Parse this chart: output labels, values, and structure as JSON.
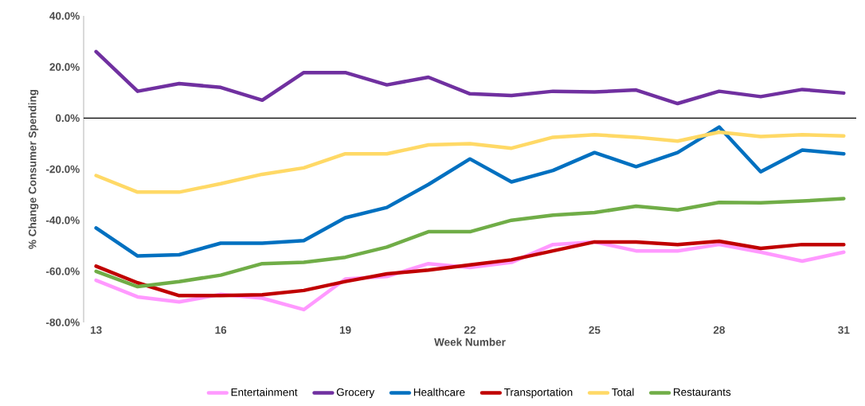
{
  "chart_data": {
    "type": "line",
    "xlabel": "Week Number",
    "ylabel": "% Change Consumer Spending",
    "x": [
      13,
      14,
      15,
      16,
      17,
      18,
      19,
      20,
      21,
      22,
      23,
      24,
      25,
      26,
      27,
      28,
      29,
      30,
      31
    ],
    "xlim": [
      12.7,
      31.3
    ],
    "xticks": [
      13,
      16,
      19,
      22,
      25,
      28,
      31
    ],
    "ylim": [
      -80,
      40
    ],
    "yticks": [
      {
        "value": -80,
        "label": "-80.0%"
      },
      {
        "value": -60,
        "label": "-60.0%"
      },
      {
        "value": -40,
        "label": "-40.0%"
      },
      {
        "value": -20,
        "label": "-20.0%"
      },
      {
        "value": 0,
        "label": "0.0%"
      },
      {
        "value": 20,
        "label": "20.0%"
      },
      {
        "value": 40,
        "label": "40.0%"
      }
    ],
    "grid": false,
    "legend": "bottom",
    "marker": "none",
    "line_style": "solid",
    "ref_lines": [
      {
        "axis": "y",
        "value": 0,
        "color": "#000000"
      }
    ],
    "series": [
      {
        "name": "Entertainment",
        "color": "#ff99ff",
        "values": [
          -63.5,
          -70,
          -72,
          -69,
          -70.5,
          -75,
          -63,
          -62,
          -57,
          -58.5,
          -56.5,
          -49.5,
          -48.5,
          -52,
          -52,
          -49.5,
          -52.5,
          -56,
          -52.5
        ]
      },
      {
        "name": "Grocery",
        "color": "#7030a0",
        "values": [
          26,
          10.5,
          13.5,
          12,
          7,
          17.8,
          17.8,
          13,
          16,
          9.5,
          8.8,
          10.5,
          10.2,
          11,
          5.7,
          10.5,
          8.4,
          11.2,
          9.8
        ]
      },
      {
        "name": "Healthcare",
        "color": "#0070c0",
        "values": [
          -43,
          -54,
          -53.5,
          -49,
          -49,
          -48,
          -39,
          -35,
          -26,
          -16,
          -25,
          -20.5,
          -13.5,
          -19,
          -13.5,
          -3.5,
          -21,
          -12.5,
          -14
        ]
      },
      {
        "name": "Transportation",
        "color": "#c00000",
        "values": [
          -58,
          -64.5,
          -69.5,
          -69.5,
          -69.2,
          -67.5,
          -64,
          -61,
          -59.5,
          -57.5,
          -55.5,
          -52,
          -48.5,
          -48.5,
          -49.5,
          -48.2,
          -51,
          -49.5,
          -49.5
        ]
      },
      {
        "name": "Total",
        "color": "#ffd966",
        "values": [
          -22.5,
          -29,
          -29,
          -25.7,
          -22,
          -19.5,
          -14,
          -14,
          -10.5,
          -10,
          -11.8,
          -7.5,
          -6.5,
          -7.5,
          -9,
          -5.5,
          -7.2,
          -6.5,
          -7
        ]
      },
      {
        "name": "Restaurants",
        "color": "#70ad47",
        "values": [
          -60,
          -66,
          -64,
          -61.5,
          -57,
          -56.5,
          -54.5,
          -50.5,
          -44.5,
          -44.5,
          -40,
          -38,
          -37,
          -34.5,
          -36,
          -33,
          -33.2,
          -32.5,
          -31.5
        ]
      }
    ]
  }
}
